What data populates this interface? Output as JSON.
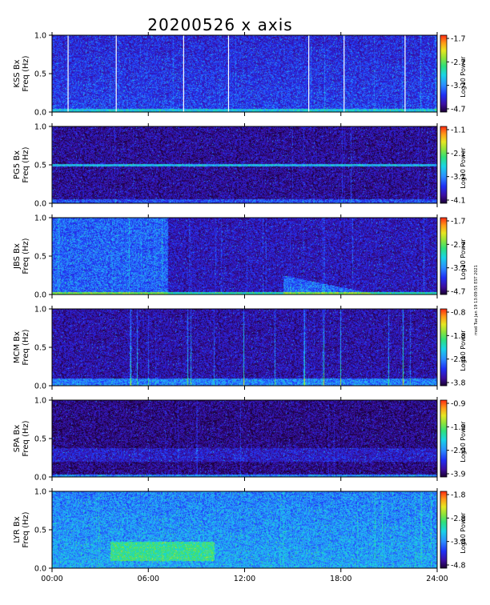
{
  "title": "20200526 x axis",
  "stamp": "mod Tue Jan 19 13:09:55 EST 2021",
  "chart_data": [
    {
      "type": "heatmap",
      "station": "KSS Bx",
      "ylabel_line1": "KSS Bx",
      "ylabel_line2": "Freq (Hz)",
      "cbar_label": "Log10 Power",
      "cbar_ticks": [
        "-1.7",
        "-2.7",
        "-3.7",
        "-4.7"
      ],
      "cbar_range": [
        -4.7,
        -1.7
      ],
      "y_ticks": [
        "1.0",
        "0.5",
        "0.0"
      ],
      "ylim": [
        0,
        1
      ],
      "white_gap_hours": [
        1.0,
        4.0,
        8.2,
        11.0,
        16.0,
        18.2,
        22.0
      ]
    },
    {
      "type": "heatmap",
      "station": "PG5 Bx",
      "ylabel_line1": "PG5 Bx",
      "ylabel_line2": "Freq (Hz)",
      "cbar_label": "Log10 Power",
      "cbar_ticks": [
        "-1.1",
        "-2.1",
        "-3.1",
        "-4.1"
      ],
      "cbar_range": [
        -4.1,
        -1.1
      ],
      "y_ticks": [
        "1.0",
        "0.5",
        "0.0"
      ],
      "ylim": [
        0,
        1
      ]
    },
    {
      "type": "heatmap",
      "station": "JBS Bx",
      "ylabel_line1": "JBS Bx",
      "ylabel_line2": "Freq (Hz)",
      "cbar_label": "Log10 Power",
      "cbar_ticks": [
        "-1.7",
        "-2.7",
        "-3.7",
        "-4.7"
      ],
      "cbar_range": [
        -4.7,
        -1.7
      ],
      "y_ticks": [
        "1.0",
        "0.5",
        "0.0"
      ],
      "ylim": [
        0,
        1
      ]
    },
    {
      "type": "heatmap",
      "station": "MCM Bx",
      "ylabel_line1": "MCM Bx",
      "ylabel_line2": "Freq (Hz)",
      "cbar_label": "Log10 Power",
      "cbar_ticks": [
        "-0.8",
        "-1.8",
        "-2.8",
        "-3.8"
      ],
      "cbar_range": [
        -3.8,
        -0.8
      ],
      "y_ticks": [
        "1.0",
        "0.5",
        "0.0"
      ],
      "ylim": [
        0,
        1
      ]
    },
    {
      "type": "heatmap",
      "station": "SPA Bx",
      "ylabel_line1": "SPA Bx",
      "ylabel_line2": "Freq (Hz)",
      "cbar_label": "Log10 Power",
      "cbar_ticks": [
        "-0.9",
        "-1.9",
        "-2.9",
        "-3.9"
      ],
      "cbar_range": [
        -3.9,
        -0.9
      ],
      "y_ticks": [
        "1.0",
        "0.5",
        "0.0"
      ],
      "ylim": [
        0,
        1
      ]
    },
    {
      "type": "heatmap",
      "station": "LYR Bx",
      "ylabel_line1": "LYR Bx",
      "ylabel_line2": "Freq (Hz)",
      "cbar_label": "Log10 Power",
      "cbar_ticks": [
        "-1.8",
        "-2.8",
        "-3.8",
        "-4.8"
      ],
      "cbar_range": [
        -4.8,
        -1.8
      ],
      "y_ticks": [
        "1.0",
        "0.5",
        "0.0"
      ],
      "ylim": [
        0,
        1
      ]
    }
  ],
  "x_axis": {
    "ticks": [
      "00:00",
      "06:00",
      "12:00",
      "18:00",
      "24:00"
    ],
    "xlim_hours": [
      0,
      24
    ]
  },
  "colors": {
    "colorbar": [
      "#1a0033",
      "#3c0fa0",
      "#1f2ff5",
      "#2b8fff",
      "#19d3e6",
      "#2fe07a",
      "#8ee33a",
      "#e6e622",
      "#ff9a18",
      "#ff2a12"
    ]
  }
}
